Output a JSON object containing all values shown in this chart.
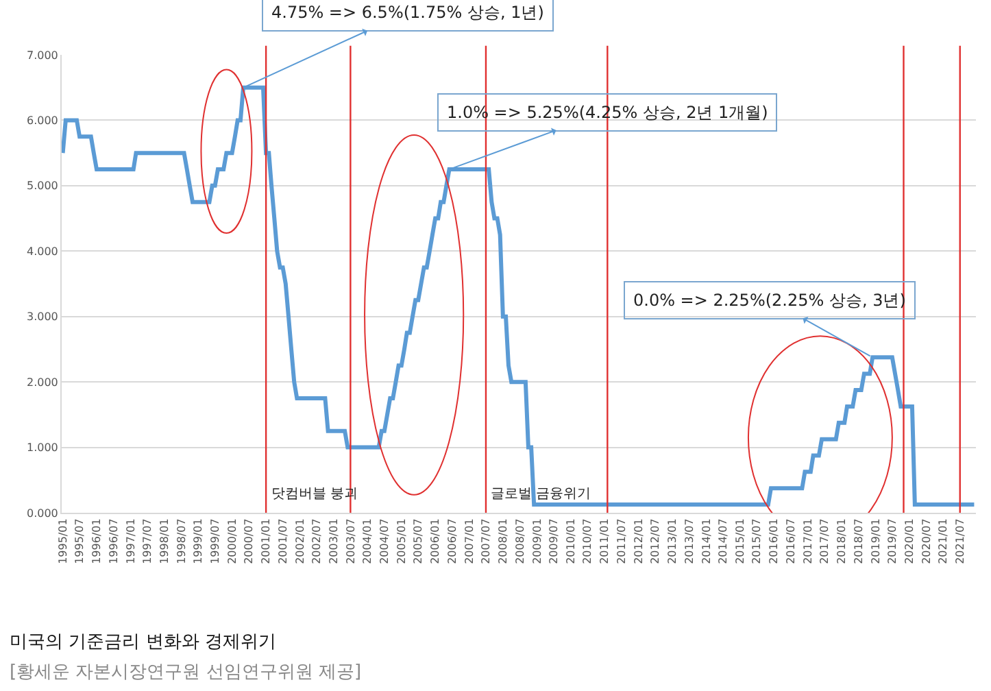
{
  "chart_data": {
    "type": "line",
    "title": "미국의 기준금리 변화와 경제위기",
    "subtitle": "[황세운 자본시장연구원 선임연구위원 제공]",
    "x": [
      "1995-01",
      "1995-02",
      "1995-06",
      "1995-07",
      "1995-11",
      "1995-12",
      "1996-01",
      "1997-02",
      "1997-03",
      "1998-08",
      "1998-09",
      "1998-10",
      "1998-11",
      "1999-05",
      "1999-06",
      "1999-07",
      "1999-08",
      "1999-10",
      "1999-11",
      "2000-01",
      "2000-02",
      "2000-03",
      "2000-04",
      "2000-05",
      "2000-12",
      "2001-01",
      "2001-02",
      "2001-03",
      "2001-04",
      "2001-05",
      "2001-06",
      "2001-07",
      "2001-08",
      "2001-09",
      "2001-10",
      "2001-11",
      "2001-12",
      "2002-10",
      "2002-11",
      "2003-05",
      "2003-06",
      "2004-05",
      "2004-06",
      "2004-07",
      "2004-08",
      "2004-09",
      "2004-10",
      "2004-11",
      "2004-12",
      "2005-01",
      "2005-02",
      "2005-03",
      "2005-04",
      "2005-05",
      "2005-06",
      "2005-07",
      "2005-08",
      "2005-09",
      "2005-10",
      "2005-11",
      "2005-12",
      "2006-01",
      "2006-02",
      "2006-03",
      "2006-04",
      "2006-05",
      "2006-06",
      "2007-08",
      "2007-09",
      "2007-10",
      "2007-11",
      "2007-12",
      "2008-01",
      "2008-02",
      "2008-03",
      "2008-04",
      "2008-09",
      "2008-10",
      "2008-11",
      "2008-12",
      "2015-11",
      "2015-12",
      "2016-11",
      "2016-12",
      "2017-02",
      "2017-03",
      "2017-05",
      "2017-06",
      "2017-11",
      "2017-12",
      "2018-02",
      "2018-03",
      "2018-05",
      "2018-06",
      "2018-08",
      "2018-09",
      "2018-11",
      "2018-12",
      "2019-07",
      "2019-08",
      "2019-09",
      "2019-10",
      "2020-02",
      "2020-03",
      "2021-12"
    ],
    "series": [
      {
        "color": "#5b9bd5",
        "values": [
          5.5,
          6.0,
          6.0,
          5.75,
          5.75,
          5.5,
          5.25,
          5.25,
          5.5,
          5.5,
          5.25,
          5.0,
          4.75,
          4.75,
          5.0,
          5.0,
          5.25,
          5.25,
          5.5,
          5.5,
          5.75,
          6.0,
          6.0,
          6.5,
          6.5,
          5.5,
          5.5,
          5.0,
          4.5,
          4.0,
          3.75,
          3.75,
          3.5,
          3.0,
          2.5,
          2.0,
          1.75,
          1.75,
          1.25,
          1.25,
          1.0,
          1.0,
          1.25,
          1.25,
          1.5,
          1.75,
          1.75,
          2.0,
          2.25,
          2.25,
          2.5,
          2.75,
          2.75,
          3.0,
          3.25,
          3.25,
          3.5,
          3.75,
          3.75,
          4.0,
          4.25,
          4.5,
          4.5,
          4.75,
          4.75,
          5.0,
          5.25,
          5.25,
          4.75,
          4.5,
          4.5,
          4.25,
          3.0,
          3.0,
          2.25,
          2.0,
          2.0,
          1.0,
          1.0,
          0.125,
          0.125,
          0.375,
          0.375,
          0.625,
          0.625,
          0.875,
          0.875,
          1.125,
          1.125,
          1.375,
          1.375,
          1.625,
          1.625,
          1.875,
          1.875,
          2.125,
          2.125,
          2.375,
          2.375,
          2.125,
          1.875,
          1.625,
          1.625,
          0.125,
          0.125
        ]
      }
    ],
    "xlim": [
      "1994-12-20",
      "2021-12-20"
    ],
    "ylim": [
      0,
      7
    ],
    "yticks": [
      {
        "value": 0,
        "label": "0.000"
      },
      {
        "value": 1,
        "label": "1.000"
      },
      {
        "value": 2,
        "label": "2.000"
      },
      {
        "value": 3,
        "label": "3.000"
      },
      {
        "value": 4,
        "label": "4.000"
      },
      {
        "value": 5,
        "label": "5.000"
      },
      {
        "value": 6,
        "label": "6.000"
      },
      {
        "value": 7,
        "label": "7.000"
      }
    ],
    "xticks": [
      {
        "value": "1995-01",
        "label": "1995/01"
      },
      {
        "value": "1995-07",
        "label": "1995/07"
      },
      {
        "value": "1996-01",
        "label": "1996/01"
      },
      {
        "value": "1996-07",
        "label": "1996/07"
      },
      {
        "value": "1997-01",
        "label": "1997/01"
      },
      {
        "value": "1997-07",
        "label": "1997/07"
      },
      {
        "value": "1998-01",
        "label": "1998/01"
      },
      {
        "value": "1998-07",
        "label": "1998/07"
      },
      {
        "value": "1999-01",
        "label": "1999/01"
      },
      {
        "value": "1999-07",
        "label": "1999/07"
      },
      {
        "value": "2000-01",
        "label": "2000/01"
      },
      {
        "value": "2000-07",
        "label": "2000/07"
      },
      {
        "value": "2001-01",
        "label": "2001/01"
      },
      {
        "value": "2001-07",
        "label": "2001/07"
      },
      {
        "value": "2002-01",
        "label": "2002/01"
      },
      {
        "value": "2002-07",
        "label": "2002/07"
      },
      {
        "value": "2003-01",
        "label": "2003/01"
      },
      {
        "value": "2003-07",
        "label": "2003/07"
      },
      {
        "value": "2004-01",
        "label": "2004/01"
      },
      {
        "value": "2004-07",
        "label": "2004/07"
      },
      {
        "value": "2005-01",
        "label": "2005/01"
      },
      {
        "value": "2005-07",
        "label": "2005/07"
      },
      {
        "value": "2006-01",
        "label": "2006/01"
      },
      {
        "value": "2006-07",
        "label": "2006/07"
      },
      {
        "value": "2007-01",
        "label": "2007/01"
      },
      {
        "value": "2007-07",
        "label": "2007/07"
      },
      {
        "value": "2008-01",
        "label": "2008/01"
      },
      {
        "value": "2008-07",
        "label": "2008/07"
      },
      {
        "value": "2009-01",
        "label": "2009/01"
      },
      {
        "value": "2009-07",
        "label": "2009/07"
      },
      {
        "value": "2010-01",
        "label": "2010/01"
      },
      {
        "value": "2010-07",
        "label": "2010/07"
      },
      {
        "value": "2011-01",
        "label": "2011/01"
      },
      {
        "value": "2011-07",
        "label": "2011/07"
      },
      {
        "value": "2012-01",
        "label": "2012/01"
      },
      {
        "value": "2012-07",
        "label": "2012/07"
      },
      {
        "value": "2013-01",
        "label": "2013/01"
      },
      {
        "value": "2013-07",
        "label": "2013/07"
      },
      {
        "value": "2014-01",
        "label": "2014/01"
      },
      {
        "value": "2014-07",
        "label": "2014/07"
      },
      {
        "value": "2015-01",
        "label": "2015/01"
      },
      {
        "value": "2015-07",
        "label": "2015/07"
      },
      {
        "value": "2016-01",
        "label": "2016/01"
      },
      {
        "value": "2016-07",
        "label": "2016/07"
      },
      {
        "value": "2017-01",
        "label": "2017/01"
      },
      {
        "value": "2017-07",
        "label": "2017/07"
      },
      {
        "value": "2018-01",
        "label": "2018/01"
      },
      {
        "value": "2018-07",
        "label": "2018/07"
      },
      {
        "value": "2019-01",
        "label": "2019/01"
      },
      {
        "value": "2019-07",
        "label": "2019/07"
      },
      {
        "value": "2020-01",
        "label": "2020/01"
      },
      {
        "value": "2020-07",
        "label": "2020/07"
      },
      {
        "value": "2021-01",
        "label": "2021/01"
      },
      {
        "value": "2021-07",
        "label": "2021/07"
      }
    ],
    "grid": "y",
    "marker": "none",
    "line_style": "solid",
    "ref_lines": [
      {
        "axis": "x",
        "value": "2001-01",
        "label": "닷컴버블 붕괴",
        "color": "#e03030"
      },
      {
        "axis": "x",
        "value": "2003-07",
        "label": null,
        "color": "#e03030"
      },
      {
        "axis": "x",
        "value": "2007-07",
        "label": "글로벌 금융위기",
        "color": "#e03030"
      },
      {
        "axis": "x",
        "value": "2011-02",
        "label": null,
        "color": "#e03030"
      },
      {
        "axis": "x",
        "value": "2019-11",
        "label": null,
        "color": "#e03030"
      },
      {
        "axis": "x",
        "value": "2021-07",
        "label": null,
        "color": "#e03030"
      }
    ],
    "annotations": [
      {
        "text": "4.75% => 6.5%(1.75% 상승, 1년)",
        "x": "2000-05",
        "y": 6.5
      },
      {
        "text": "1.0% => 5.25%(4.25% 상승, 2년 1개월)",
        "x": "2006-06",
        "y": 5.25
      },
      {
        "text": "0.0% => 2.25%(2.25% 상승, 3년)",
        "x": "2018-12",
        "y": 2.375
      }
    ]
  }
}
